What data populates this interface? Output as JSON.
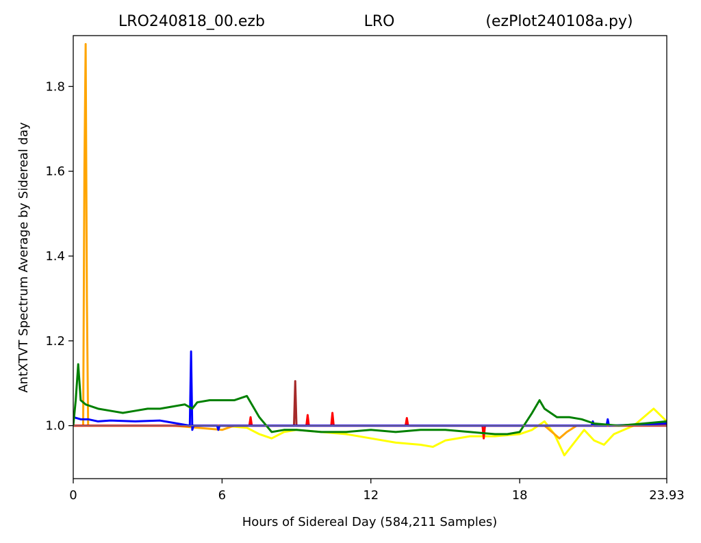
{
  "chart_data": {
    "type": "line",
    "title_parts": [
      "LRO240818_00.ezb",
      "LRO",
      "(ezPlot240108a.py)"
    ],
    "xlabel": "Hours of Sidereal Day  (584,211 Samples)",
    "ylabel": "AntXTVT Spectrum Average by Sidereal day",
    "xlim": [
      0,
      23.93
    ],
    "ylim": [
      0.875,
      1.92
    ],
    "xticks": [
      0,
      6,
      12,
      18,
      23.93
    ],
    "xtick_labels": [
      "0",
      "6",
      "12",
      "18",
      "23.93"
    ],
    "yticks": [
      1.0,
      1.2,
      1.4,
      1.6,
      1.8
    ],
    "ytick_labels": [
      "1.0",
      "1.2",
      "1.4",
      "1.6",
      "1.8"
    ],
    "grid": false,
    "legend": "none",
    "series": [
      {
        "color": "#ffff00",
        "x": [
          0,
          2,
          4,
          6,
          7,
          7.5,
          8,
          8.5,
          9,
          10,
          11,
          12,
          13,
          14,
          14.5,
          15,
          16,
          17,
          18,
          18.5,
          19,
          19.4,
          19.8,
          20.2,
          20.6,
          21,
          21.4,
          21.8,
          22.2,
          22.6,
          23,
          23.4,
          23.93
        ],
        "y": [
          1.0,
          1.0,
          1.0,
          1.0,
          0.995,
          0.98,
          0.97,
          0.985,
          0.99,
          0.985,
          0.98,
          0.97,
          0.96,
          0.955,
          0.95,
          0.965,
          0.975,
          0.975,
          0.98,
          0.99,
          1.01,
          0.98,
          0.93,
          0.96,
          0.99,
          0.965,
          0.955,
          0.98,
          0.99,
          1.0,
          1.02,
          1.04,
          1.01
        ]
      },
      {
        "color": "#ffa500",
        "x": [
          0,
          0.4,
          0.45,
          0.5,
          0.55,
          0.6,
          2,
          4,
          6,
          6.5,
          8,
          12,
          16,
          18,
          19,
          19.3,
          19.6,
          19.9,
          20.3,
          22,
          23.93
        ],
        "y": [
          1.0,
          1.0,
          1.6,
          1.9,
          1.3,
          1.0,
          1.0,
          1.0,
          0.99,
          1.0,
          1.0,
          1.0,
          1.0,
          1.0,
          1.0,
          0.985,
          0.97,
          0.985,
          1.0,
          1.0,
          1.005
        ]
      },
      {
        "color": "#a52a2a",
        "x": [
          0,
          6,
          8.9,
          8.95,
          9.0,
          9.1,
          12,
          18,
          23.93
        ],
        "y": [
          1.0,
          1.0,
          1.0,
          1.105,
          1.0,
          1.0,
          1.0,
          1.0,
          1.0
        ]
      },
      {
        "color": "#ff0000",
        "x": [
          0,
          5,
          7.1,
          7.15,
          7.2,
          9.4,
          9.45,
          9.5,
          10.4,
          10.45,
          10.5,
          13.4,
          13.45,
          13.5,
          16.5,
          16.55,
          16.6,
          23.93
        ],
        "y": [
          1.0,
          1.0,
          1.0,
          1.02,
          1.0,
          1.0,
          1.025,
          1.0,
          1.0,
          1.03,
          1.0,
          1.0,
          1.018,
          1.0,
          1.0,
          0.97,
          1.0,
          1.0
        ]
      },
      {
        "color": "#0000ff",
        "x": [
          0,
          0.3,
          0.6,
          1.0,
          1.5,
          2.5,
          3.5,
          4.7,
          4.75,
          4.8,
          4.85,
          5.0,
          5.8,
          5.85,
          5.9,
          12,
          18,
          20.9,
          20.95,
          21.0,
          21.5,
          21.55,
          21.6,
          23.93
        ],
        "y": [
          1.02,
          1.015,
          1.015,
          1.01,
          1.012,
          1.01,
          1.012,
          1.0,
          1.175,
          0.99,
          1.0,
          1.0,
          1.0,
          0.99,
          1.0,
          1.0,
          1.0,
          1.0,
          1.01,
          1.0,
          1.0,
          1.015,
          1.0,
          1.005
        ]
      },
      {
        "color": "#008000",
        "x": [
          0,
          0.1,
          0.2,
          0.3,
          0.5,
          1.0,
          1.5,
          2.0,
          2.5,
          3.0,
          3.5,
          4.0,
          4.5,
          4.8,
          5.0,
          5.5,
          6.0,
          6.5,
          7.0,
          7.5,
          8.0,
          8.5,
          9.0,
          10.0,
          11.0,
          12.0,
          13.0,
          14.0,
          15.0,
          16.0,
          17.0,
          17.5,
          18.0,
          18.5,
          18.8,
          19.0,
          19.5,
          20.0,
          20.5,
          21.0,
          22.0,
          23.0,
          23.93
        ],
        "y": [
          1.0,
          1.06,
          1.145,
          1.06,
          1.05,
          1.04,
          1.035,
          1.03,
          1.035,
          1.04,
          1.04,
          1.045,
          1.05,
          1.04,
          1.055,
          1.06,
          1.06,
          1.06,
          1.07,
          1.02,
          0.985,
          0.99,
          0.99,
          0.985,
          0.985,
          0.99,
          0.985,
          0.99,
          0.99,
          0.985,
          0.98,
          0.98,
          0.985,
          1.03,
          1.06,
          1.04,
          1.02,
          1.02,
          1.015,
          1.005,
          1.0,
          1.005,
          1.01
        ]
      },
      {
        "color": "#808080",
        "x": [
          0,
          23.93
        ],
        "y": [
          1.0,
          1.0
        ]
      }
    ]
  }
}
